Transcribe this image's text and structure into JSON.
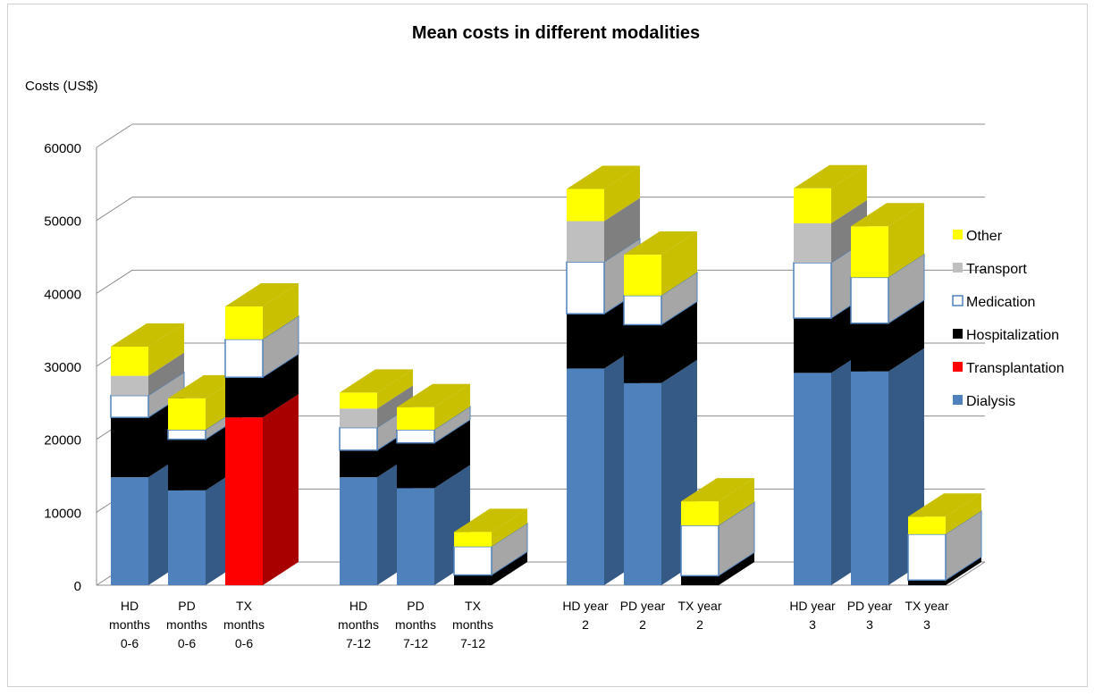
{
  "chart_data": {
    "type": "bar",
    "stacked": true,
    "three_d": true,
    "title": "Mean costs in different modalities",
    "ylabel": "Costs (US$)",
    "xlabel": "",
    "ylim": [
      0,
      60000
    ],
    "yticks": [
      0,
      10000,
      20000,
      30000,
      40000,
      50000,
      60000
    ],
    "grid": true,
    "legend_position": "right",
    "categories": [
      [
        "HD",
        "months",
        "0-6"
      ],
      [
        "PD",
        "months",
        "0-6"
      ],
      [
        "TX",
        "months",
        "0-6"
      ],
      [
        "HD",
        "months",
        "7-12"
      ],
      [
        "PD",
        "months",
        "7-12"
      ],
      [
        "TX",
        "months",
        "7-12"
      ],
      [
        "HD year",
        "2"
      ],
      [
        "PD year",
        "2"
      ],
      [
        "TX year",
        "2"
      ],
      [
        "HD year",
        "3"
      ],
      [
        "PD year",
        "3"
      ],
      [
        "TX year",
        "3"
      ]
    ],
    "groups": [
      [
        0,
        1,
        2
      ],
      [
        3,
        4,
        5
      ],
      [
        6,
        7,
        8
      ],
      [
        9,
        10,
        11
      ]
    ],
    "series": [
      {
        "name": "Dialysis",
        "color": "#4f81bd",
        "side": "#355a86",
        "values": [
          14800,
          13000,
          0,
          14800,
          13300,
          0,
          29700,
          27700,
          0,
          29100,
          29300,
          0
        ]
      },
      {
        "name": "Transplantation",
        "color": "#ff0000",
        "side": "#a80000",
        "values": [
          0,
          0,
          23000,
          0,
          0,
          0,
          0,
          0,
          0,
          0,
          0,
          0
        ]
      },
      {
        "name": "Hospitalization",
        "color": "#000000",
        "side": "#000000",
        "values": [
          8200,
          7000,
          5500,
          3700,
          6200,
          1400,
          7500,
          8000,
          1300,
          7500,
          6600,
          700
        ]
      },
      {
        "name": "Medication",
        "color": "#ffffff",
        "border": "#4f81bd",
        "side": "#a6a6a6",
        "values": [
          3000,
          1300,
          5200,
          3100,
          1800,
          3900,
          7100,
          4000,
          6900,
          7600,
          6300,
          6300
        ]
      },
      {
        "name": "Transport",
        "color": "#bfbfbf",
        "side": "#7f7f7f",
        "values": [
          2700,
          0,
          0,
          2600,
          0,
          0,
          5600,
          0,
          0,
          5400,
          0,
          0
        ]
      },
      {
        "name": "Other",
        "color": "#ffff00",
        "side": "#c8c000",
        "top": "#c8c000",
        "values": [
          4000,
          4300,
          4500,
          2200,
          3100,
          2000,
          4400,
          5600,
          3300,
          4800,
          7000,
          2400
        ]
      }
    ],
    "legend_order": [
      "Other",
      "Transport",
      "Medication",
      "Hospitalization",
      "Transplantation",
      "Dialysis"
    ]
  }
}
